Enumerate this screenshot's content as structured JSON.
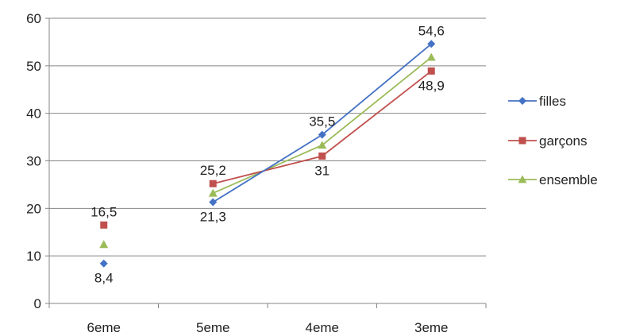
{
  "chart_data": {
    "type": "line",
    "categories": [
      "6eme",
      "5eme",
      "4eme",
      "3eme"
    ],
    "ylim": [
      0,
      60
    ],
    "yticks": [
      "0",
      "10",
      "20",
      "30",
      "40",
      "50",
      "60"
    ],
    "grid": true,
    "legend_position": "right",
    "series": [
      {
        "name": "filles",
        "color": "#4472C4",
        "marker": "diamond",
        "values": [
          8.4,
          21.3,
          35.5,
          54.6
        ],
        "connect_from": 1
      },
      {
        "name": "garçons",
        "color": "#C0504D",
        "marker": "square",
        "values": [
          16.5,
          25.2,
          31,
          48.9
        ],
        "connect_from": 1
      },
      {
        "name": "ensemble",
        "color": "#9BBB59",
        "marker": "triangle",
        "values": [
          12.4,
          23.2,
          33.3,
          51.8
        ],
        "connect_from": 1
      }
    ],
    "data_labels": [
      {
        "series": "filles",
        "index": 0,
        "text": "8,4",
        "pos": "below"
      },
      {
        "series": "garçons",
        "index": 0,
        "text": "16,5",
        "pos": "above"
      },
      {
        "series": "filles",
        "index": 1,
        "text": "21,3",
        "pos": "below"
      },
      {
        "series": "garçons",
        "index": 1,
        "text": "25,2",
        "pos": "above"
      },
      {
        "series": "filles",
        "index": 2,
        "text": "35,5",
        "pos": "above"
      },
      {
        "series": "garçons",
        "index": 2,
        "text": "31",
        "pos": "below"
      },
      {
        "series": "filles",
        "index": 3,
        "text": "54,6",
        "pos": "above"
      },
      {
        "series": "garçons",
        "index": 3,
        "text": "48,9",
        "pos": "below"
      }
    ]
  }
}
